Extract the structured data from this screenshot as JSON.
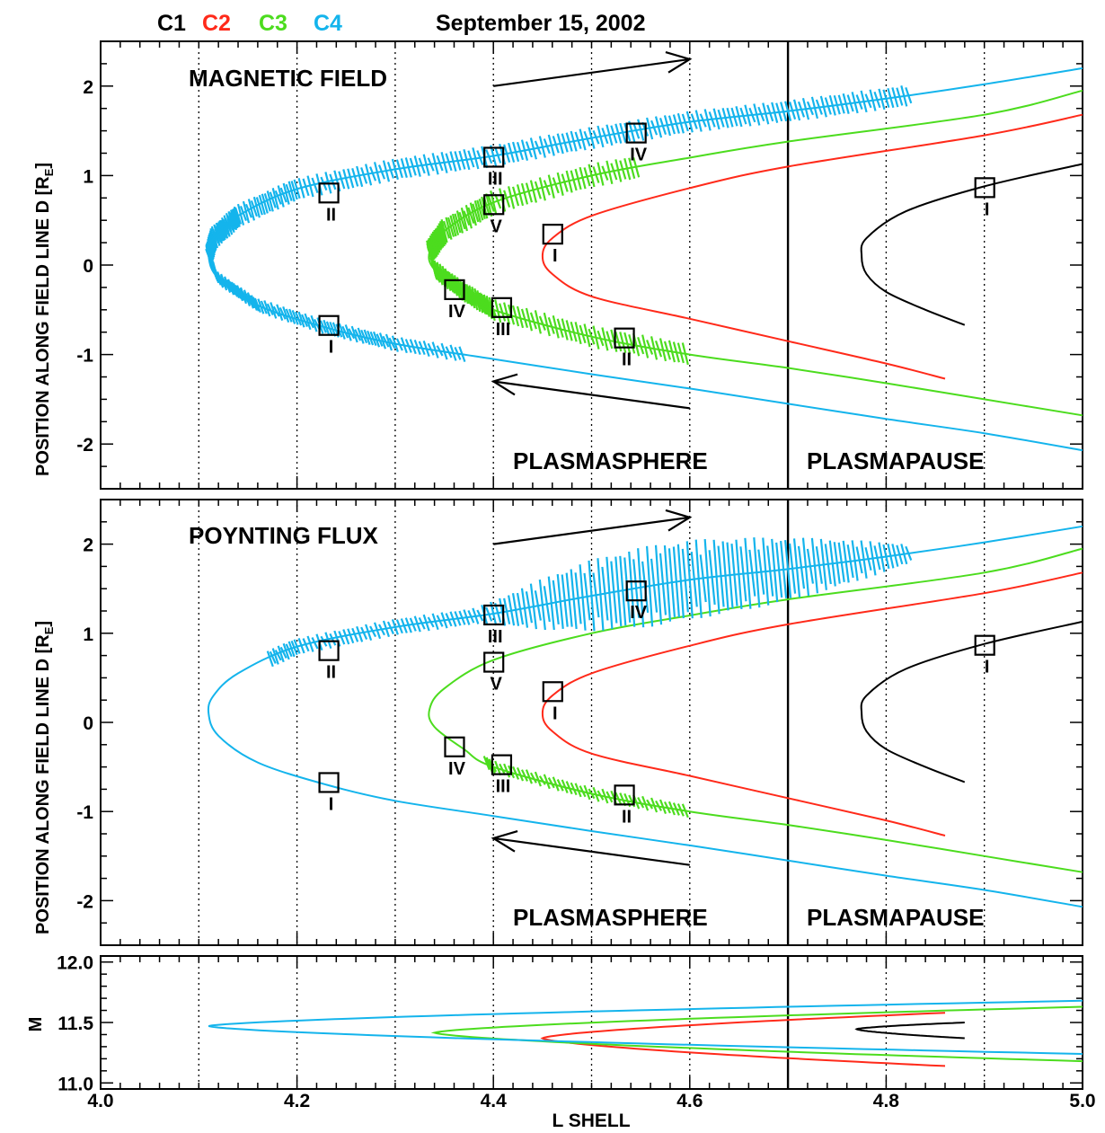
{
  "header": {
    "spacecraft": [
      {
        "label": "C1",
        "color": "#000000"
      },
      {
        "label": "C2",
        "color": "#ff2a1a"
      },
      {
        "label": "C3",
        "color": "#4cdc1e"
      },
      {
        "label": "C4",
        "color": "#14b4ec"
      }
    ],
    "date": "September 15, 2002"
  },
  "colors": {
    "C1": "#000000",
    "C2": "#ff2a1a",
    "C3": "#4cdc1e",
    "C4": "#14b4ec"
  },
  "chart_data": [
    {
      "type": "line",
      "panel": "top",
      "title": "MAGNETIC FIELD",
      "ylabel_main": "POSITION ALONG FIELD LINE D [R",
      "ylabel_sub": "E",
      "ylabel_close": "]",
      "xlim": [
        4.0,
        5.0
      ],
      "ylim": [
        -2.5,
        2.5
      ],
      "yticks": [
        "-2",
        "-1",
        "0",
        "1",
        "2"
      ],
      "vertical_dotted_lines": [
        4.1,
        4.2,
        4.3,
        4.4,
        4.5,
        4.6,
        4.8,
        4.9
      ],
      "plasmapause_line": 4.7,
      "region_labels": [
        "PLASMASPHERE",
        "PLASMAPAUSE"
      ],
      "arrows": [
        {
          "direction": "outbound",
          "from": [
            4.4,
            2.0
          ],
          "to": [
            4.6,
            2.3
          ]
        },
        {
          "direction": "inbound",
          "from": [
            4.6,
            -1.6
          ],
          "to": [
            4.4,
            -1.3
          ]
        }
      ],
      "series": [
        {
          "name": "C1",
          "vertex_l": 4.775,
          "points": [
            [
              5.0,
              1.13
            ],
            [
              4.9,
              0.88
            ],
            [
              4.82,
              0.6
            ],
            [
              4.78,
              0.3
            ],
            [
              4.775,
              0.1
            ],
            [
              4.78,
              -0.1
            ],
            [
              4.8,
              -0.3
            ],
            [
              4.84,
              -0.5
            ],
            [
              4.88,
              -0.67
            ]
          ]
        },
        {
          "name": "C2",
          "vertex_l": 4.45,
          "points": [
            [
              5.0,
              1.68
            ],
            [
              4.9,
              1.45
            ],
            [
              4.7,
              1.1
            ],
            [
              4.6,
              0.86
            ],
            [
              4.5,
              0.55
            ],
            [
              4.46,
              0.3
            ],
            [
              4.45,
              0.1
            ],
            [
              4.46,
              -0.1
            ],
            [
              4.5,
              -0.35
            ],
            [
              4.6,
              -0.6
            ],
            [
              4.7,
              -0.85
            ],
            [
              4.8,
              -1.1
            ],
            [
              4.86,
              -1.27
            ]
          ]
        },
        {
          "name": "C3",
          "vertex_l": 4.335,
          "points": [
            [
              5.0,
              1.95
            ],
            [
              4.9,
              1.68
            ],
            [
              4.7,
              1.38
            ],
            [
              4.6,
              1.2
            ],
            [
              4.5,
              1.0
            ],
            [
              4.4,
              0.7
            ],
            [
              4.35,
              0.38
            ],
            [
              4.335,
              0.15
            ],
            [
              4.34,
              -0.05
            ],
            [
              4.37,
              -0.3
            ],
            [
              4.4,
              -0.5
            ],
            [
              4.5,
              -0.8
            ],
            [
              4.6,
              -1.0
            ],
            [
              4.7,
              -1.15
            ],
            [
              4.8,
              -1.32
            ],
            [
              4.9,
              -1.5
            ],
            [
              5.0,
              -1.68
            ]
          ]
        },
        {
          "name": "C4",
          "vertex_l": 4.11,
          "points": [
            [
              5.0,
              2.2
            ],
            [
              4.9,
              2.02
            ],
            [
              4.8,
              1.86
            ],
            [
              4.7,
              1.72
            ],
            [
              4.6,
              1.6
            ],
            [
              4.5,
              1.42
            ],
            [
              4.4,
              1.22
            ],
            [
              4.3,
              1.07
            ],
            [
              4.2,
              0.85
            ],
            [
              4.14,
              0.55
            ],
            [
              4.115,
              0.3
            ],
            [
              4.11,
              0.1
            ],
            [
              4.12,
              -0.15
            ],
            [
              4.16,
              -0.45
            ],
            [
              4.23,
              -0.7
            ],
            [
              4.3,
              -0.88
            ],
            [
              4.4,
              -1.05
            ],
            [
              4.5,
              -1.22
            ],
            [
              4.6,
              -1.38
            ],
            [
              4.7,
              -1.55
            ],
            [
              4.8,
              -1.72
            ],
            [
              4.9,
              -1.88
            ],
            [
              5.0,
              -2.07
            ]
          ]
        }
      ],
      "markers": [
        {
          "series": "C4",
          "label": "I",
          "l": 4.232,
          "d": -0.68
        },
        {
          "series": "C4",
          "label": "II",
          "l": 4.232,
          "d": 0.8
        },
        {
          "series": "C4",
          "label": "III",
          "l": 4.4,
          "d": 1.2
        },
        {
          "series": "C4",
          "label": "IV",
          "l": 4.545,
          "d": 1.47
        },
        {
          "series": "C3",
          "label": "IV",
          "l": 4.36,
          "d": -0.28
        },
        {
          "series": "C3",
          "label": "III",
          "l": 4.408,
          "d": -0.48
        },
        {
          "series": "C3",
          "label": "V",
          "l": 4.4,
          "d": 0.67
        },
        {
          "series": "C3",
          "label": "II",
          "l": 4.533,
          "d": -0.82
        },
        {
          "series": "C2",
          "label": "I",
          "l": 4.46,
          "d": 0.34
        },
        {
          "series": "C1",
          "label": "I",
          "l": 4.9,
          "d": 0.86
        }
      ]
    },
    {
      "type": "line",
      "panel": "middle",
      "title": "POYNTING FLUX",
      "ylabel_main": "POSITION ALONG FIELD LINE D [R",
      "ylabel_sub": "E",
      "ylabel_close": "]",
      "xlim": [
        4.0,
        5.0
      ],
      "ylim": [
        -2.5,
        2.5
      ],
      "yticks": [
        "-2",
        "-1",
        "0",
        "1",
        "2"
      ],
      "vertical_dotted_lines": [
        4.1,
        4.2,
        4.3,
        4.4,
        4.5,
        4.6,
        4.8,
        4.9
      ],
      "plasmapause_line": 4.7,
      "region_labels": [
        "PLASMASPHERE",
        "PLASMAPAUSE"
      ],
      "series": [
        "C1",
        "C2",
        "C3",
        "C4"
      ]
    },
    {
      "type": "line",
      "panel": "bottom",
      "xlabel": "L SHELL",
      "ylabel": "M",
      "xlim": [
        4.0,
        5.0
      ],
      "ylim": [
        10.95,
        12.05
      ],
      "xticks": [
        "4.0",
        "4.2",
        "4.4",
        "4.6",
        "4.8",
        "5.0"
      ],
      "yticks": [
        "11.0",
        "11.5",
        "12.0"
      ],
      "vertical_dotted_lines": [
        4.1,
        4.2,
        4.3,
        4.4,
        4.5,
        4.6,
        4.8,
        4.9
      ],
      "plasmapause_line": 4.7,
      "series": [
        {
          "name": "C1",
          "vertex_l": 4.77,
          "m_upper_end": 11.5,
          "m_lower_end": 11.37,
          "l_end": 4.88
        },
        {
          "name": "C2",
          "vertex_l": 4.45,
          "m_upper_end": 11.58,
          "m_lower_end": 11.14,
          "l_end": 4.86
        },
        {
          "name": "C3",
          "vertex_l": 4.34,
          "m_upper_end": 11.63,
          "m_lower_end": 11.18,
          "l_end": 5.0
        },
        {
          "name": "C4",
          "vertex_l": 4.11,
          "m_upper_end": 11.68,
          "m_lower_end": 11.24,
          "l_end": 5.0
        }
      ]
    }
  ]
}
